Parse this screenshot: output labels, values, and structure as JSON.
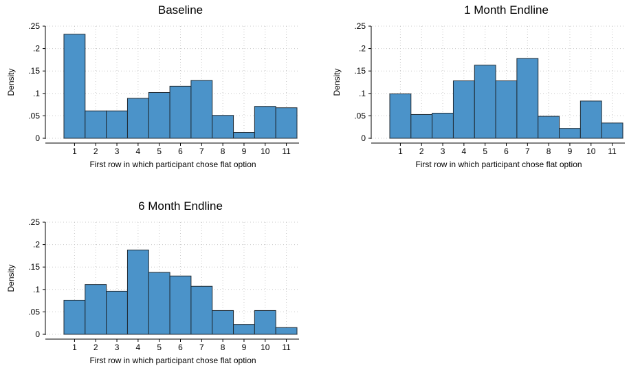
{
  "chart_data": [
    {
      "type": "bar",
      "title": "Baseline",
      "xlabel": "First row in which participant chose flat option",
      "ylabel": "Density",
      "categories": [
        "1",
        "2",
        "3",
        "4",
        "5",
        "6",
        "7",
        "8",
        "9",
        "10",
        "11"
      ],
      "values": [
        0.232,
        0.061,
        0.061,
        0.089,
        0.102,
        0.116,
        0.129,
        0.051,
        0.013,
        0.071,
        0.068
      ],
      "ylim": [
        0,
        0.25
      ],
      "yticks": [
        0,
        0.05,
        0.1,
        0.15,
        0.2,
        0.25
      ],
      "ytick_labels": [
        "0",
        ".05",
        ".1",
        ".15",
        ".2",
        ".25"
      ],
      "grid": true,
      "color": "#4b93c9"
    },
    {
      "type": "bar",
      "title": "1 Month Endline",
      "xlabel": "First row in which participant chose flat option",
      "ylabel": "Density",
      "categories": [
        "1",
        "2",
        "3",
        "4",
        "5",
        "6",
        "7",
        "8",
        "9",
        "10",
        "11"
      ],
      "values": [
        0.099,
        0.053,
        0.056,
        0.128,
        0.163,
        0.128,
        0.178,
        0.049,
        0.022,
        0.083,
        0.034
      ],
      "ylim": [
        0,
        0.25
      ],
      "yticks": [
        0,
        0.05,
        0.1,
        0.15,
        0.2,
        0.25
      ],
      "ytick_labels": [
        "0",
        ".05",
        ".1",
        ".15",
        ".2",
        ".25"
      ],
      "grid": true,
      "color": "#4b93c9"
    },
    {
      "type": "bar",
      "title": "6 Month Endline",
      "xlabel": "First row in which participant chose flat option",
      "ylabel": "Density",
      "categories": [
        "1",
        "2",
        "3",
        "4",
        "5",
        "6",
        "7",
        "8",
        "9",
        "10",
        "11"
      ],
      "values": [
        0.076,
        0.111,
        0.096,
        0.188,
        0.138,
        0.13,
        0.107,
        0.053,
        0.022,
        0.053,
        0.015
      ],
      "ylim": [
        0,
        0.25
      ],
      "yticks": [
        0,
        0.05,
        0.1,
        0.15,
        0.2,
        0.25
      ],
      "ytick_labels": [
        "0",
        ".05",
        ".1",
        ".15",
        ".2",
        ".25"
      ],
      "grid": true,
      "color": "#4b93c9"
    }
  ]
}
